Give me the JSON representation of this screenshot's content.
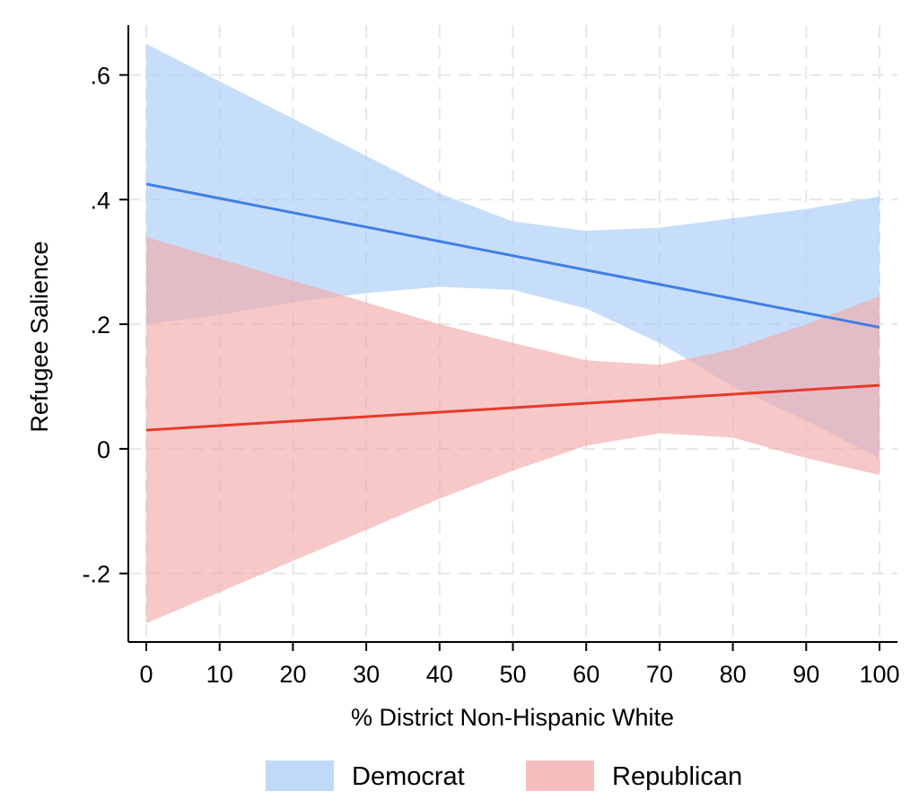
{
  "chart_data": {
    "type": "line",
    "xlabel": "% District Non-Hispanic White",
    "ylabel": "Refugee Salience",
    "xlim": [
      0,
      100
    ],
    "ylim": [
      -0.31,
      0.68
    ],
    "xticks": [
      0,
      10,
      20,
      30,
      40,
      50,
      60,
      70,
      80,
      90,
      100
    ],
    "xtick_labels": [
      "0",
      "10",
      "20",
      "30",
      "40",
      "50",
      "60",
      "70",
      "80",
      "90",
      "100"
    ],
    "yticks": [
      -0.2,
      0,
      0.2,
      0.4,
      0.6
    ],
    "ytick_labels": [
      "-.2",
      "0",
      ".2",
      ".4",
      ".6"
    ],
    "grid": true,
    "legend_position": "bottom",
    "series": [
      {
        "name": "Democrat",
        "line_color": "#3f7fe8",
        "band_color": "#a9cdf7",
        "x": [
          0,
          100
        ],
        "y": [
          0.425,
          0.195
        ],
        "ci_x": [
          0,
          10,
          20,
          30,
          40,
          50,
          60,
          70,
          80,
          90,
          100
        ],
        "ci_upper": [
          0.65,
          0.59,
          0.53,
          0.47,
          0.41,
          0.365,
          0.35,
          0.355,
          0.37,
          0.385,
          0.405
        ],
        "ci_lower": [
          0.2,
          0.215,
          0.235,
          0.25,
          0.26,
          0.255,
          0.225,
          0.17,
          0.1,
          0.045,
          -0.015
        ]
      },
      {
        "name": "Republican",
        "line_color": "#e8392b",
        "band_color": "#f3aaaa",
        "x": [
          0,
          100
        ],
        "y": [
          0.03,
          0.102
        ],
        "ci_x": [
          0,
          10,
          20,
          30,
          40,
          50,
          60,
          70,
          80,
          90,
          100
        ],
        "ci_upper": [
          0.34,
          0.305,
          0.27,
          0.235,
          0.2,
          0.17,
          0.142,
          0.135,
          0.16,
          0.2,
          0.245
        ],
        "ci_lower": [
          -0.28,
          -0.23,
          -0.18,
          -0.13,
          -0.08,
          -0.035,
          0.005,
          0.025,
          0.018,
          -0.015,
          -0.042
        ]
      }
    ]
  },
  "colors": {
    "grid": "#e6e6e6",
    "axis": "#000000"
  }
}
